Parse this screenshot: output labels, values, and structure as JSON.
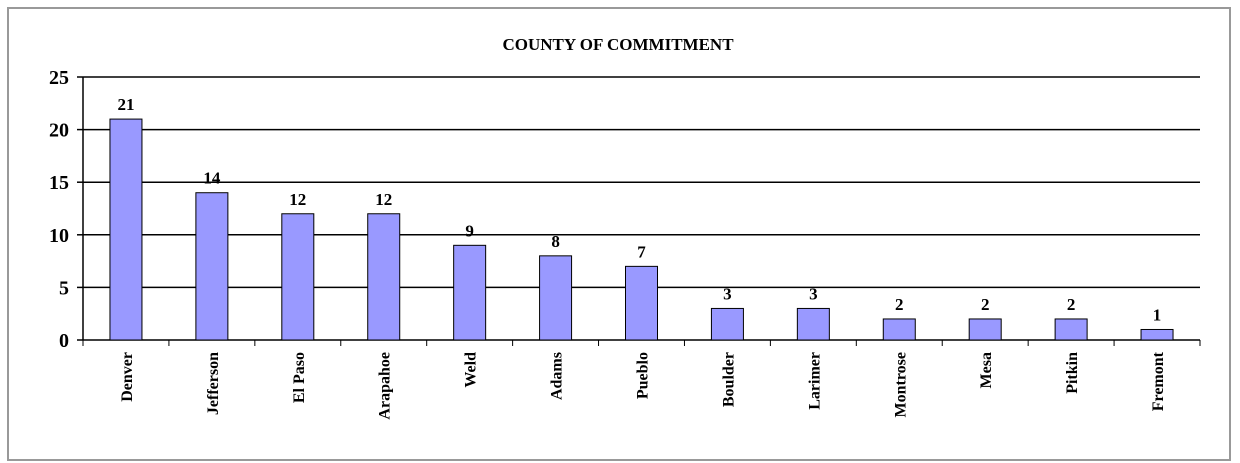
{
  "chart_data": {
    "type": "bar",
    "title": "COUNTY OF COMMITMENT",
    "categories": [
      "Denver",
      "Jefferson",
      "El Paso",
      "Arapahoe",
      "Weld",
      "Adams",
      "Pueblo",
      "Boulder",
      "Larimer",
      "Montrose",
      "Mesa",
      "Pitkin",
      "Fremont"
    ],
    "values": [
      21,
      14,
      12,
      12,
      9,
      8,
      7,
      3,
      3,
      2,
      2,
      2,
      1
    ],
    "color": "#9999ff",
    "ylim": [
      0,
      25
    ],
    "yticks": [
      0,
      5,
      10,
      15,
      20,
      25
    ],
    "grid": true
  }
}
